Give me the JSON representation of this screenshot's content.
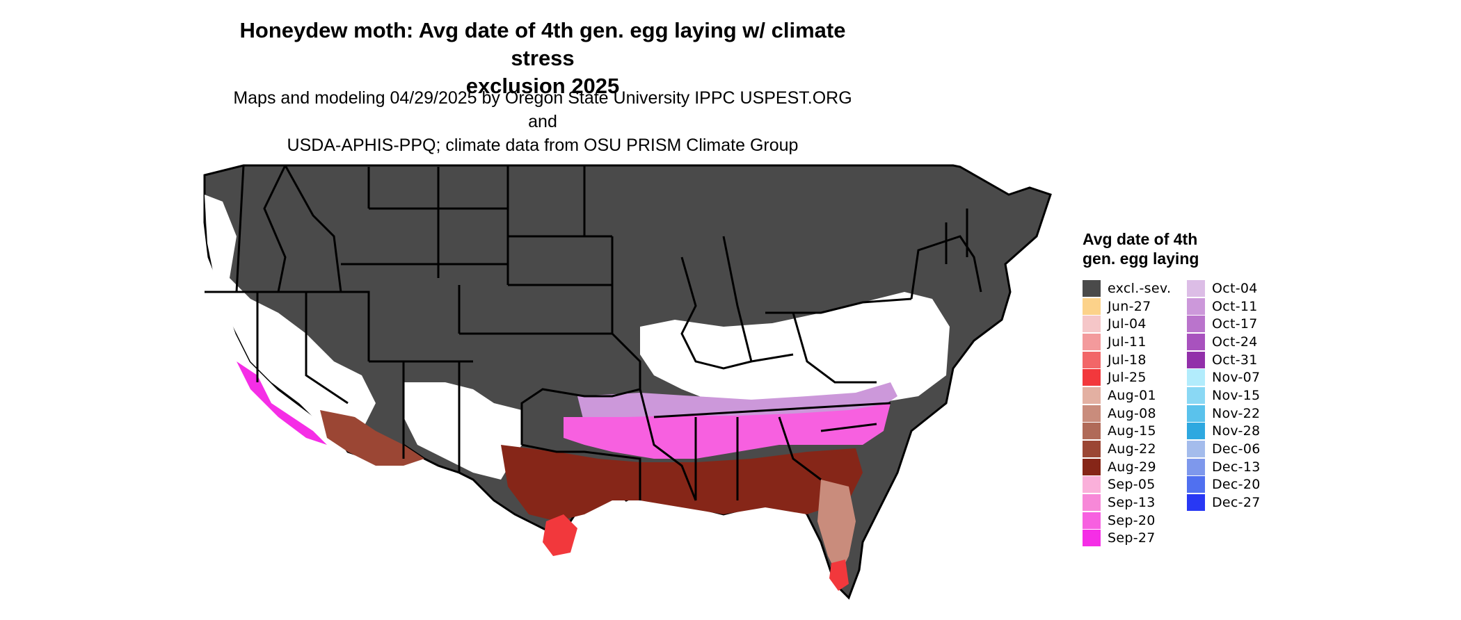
{
  "title_line1": "Honeydew moth: Avg date of 4th gen. egg laying w/ climate stress",
  "title_line2": "exclusion 2025",
  "subtitle_line1": "Maps and modeling 04/29/2025 by Oregon State University IPPC USPEST.ORG and",
  "subtitle_line2": "USDA-APHIS-PPQ; climate data from OSU PRISM Climate Group",
  "legend": {
    "title_line1": "Avg date of 4th",
    "title_line2": "gen. egg laying",
    "items": [
      {
        "label": "excl.-sev.",
        "color": "#4a4a4a"
      },
      {
        "label": "Jun-27",
        "color": "#fcd28a"
      },
      {
        "label": "Jul-04",
        "color": "#f5c6c8"
      },
      {
        "label": "Jul-11",
        "color": "#f39a9c"
      },
      {
        "label": "Jul-18",
        "color": "#f26668"
      },
      {
        "label": "Jul-25",
        "color": "#f2383c"
      },
      {
        "label": "Aug-01",
        "color": "#e3b0a2"
      },
      {
        "label": "Aug-08",
        "color": "#c98c7c"
      },
      {
        "label": "Aug-15",
        "color": "#b06a58"
      },
      {
        "label": "Aug-22",
        "color": "#9b4634"
      },
      {
        "label": "Aug-29",
        "color": "#862618"
      },
      {
        "label": "Sep-05",
        "color": "#fab0da"
      },
      {
        "label": "Sep-13",
        "color": "#f788d8"
      },
      {
        "label": "Sep-20",
        "color": "#f760e0"
      },
      {
        "label": "Sep-27",
        "color": "#f52ee6"
      },
      {
        "label": "Oct-04",
        "color": "#dcbde6"
      },
      {
        "label": "Oct-11",
        "color": "#cc98da"
      },
      {
        "label": "Oct-17",
        "color": "#ba74cc"
      },
      {
        "label": "Oct-24",
        "color": "#a852be"
      },
      {
        "label": "Oct-31",
        "color": "#9230aa"
      },
      {
        "label": "Nov-07",
        "color": "#b2ecfc"
      },
      {
        "label": "Nov-15",
        "color": "#8ad8f4"
      },
      {
        "label": "Nov-22",
        "color": "#5ac2ec"
      },
      {
        "label": "Nov-28",
        "color": "#2ea8e0"
      },
      {
        "label": "Dec-06",
        "color": "#a4bcec"
      },
      {
        "label": "Dec-13",
        "color": "#7e98ec"
      },
      {
        "label": "Dec-20",
        "color": "#5070f0"
      },
      {
        "label": "Dec-27",
        "color": "#2838f4"
      }
    ]
  }
}
